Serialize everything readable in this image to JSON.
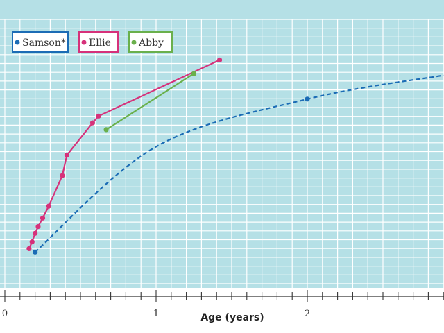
{
  "chart_data": {
    "type": "line",
    "title": "",
    "xlabel": "Age (years)",
    "ylabel": "",
    "xlim": [
      0,
      2.9
    ],
    "x_tick_labels": [
      "0",
      "1",
      "2"
    ],
    "grid": true,
    "legend_placement": "top-left",
    "colors": {
      "plot_background": "#b5e0e6",
      "grid": "#ffffff",
      "Samson*": "#1b6cb5",
      "Ellie": "#d6317a",
      "Abby": "#6ab04c"
    },
    "series": [
      {
        "name": "Samson*",
        "style": "dashed",
        "x": [
          0.2,
          1,
          2,
          2.9
        ],
        "y": [
          0.6,
          6.8,
          9.6,
          11.0
        ],
        "markers": [
          0,
          2
        ]
      },
      {
        "name": "Ellie",
        "style": "solid",
        "x": [
          0.16,
          0.18,
          0.2,
          0.22,
          0.25,
          0.29,
          0.38,
          0.41,
          0.58,
          0.62,
          1.42
        ],
        "y": [
          0.8,
          1.2,
          1.7,
          2.1,
          2.6,
          3.3,
          5.1,
          6.3,
          8.2,
          8.6,
          11.9
        ],
        "markers": "all"
      },
      {
        "name": "Abby",
        "style": "solid",
        "x": [
          0.67,
          1.25
        ],
        "y": [
          7.8,
          11.1
        ],
        "markers": "all"
      }
    ]
  }
}
